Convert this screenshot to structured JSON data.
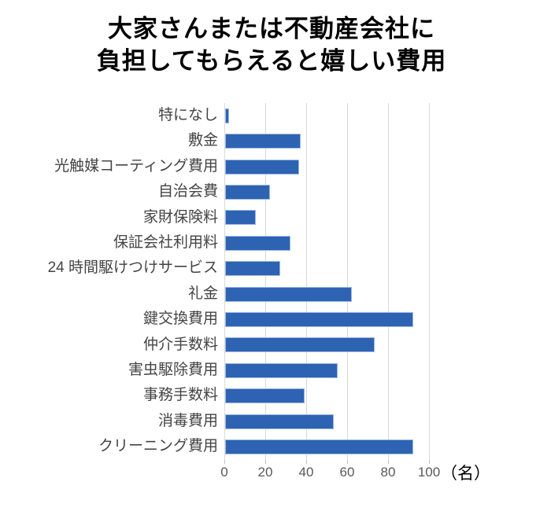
{
  "header": {
    "title_line1": "大家さんまたは不動産会社に",
    "title_line2": "負担してもらえると嬉しい費用"
  },
  "chart_data": {
    "type": "bar",
    "orientation": "horizontal",
    "title": "大家さんまたは不動産会社に負担してもらえると嬉しい費用",
    "categories": [
      "特になし",
      "敷金",
      "光触媒コーティング費用",
      "自治会費",
      "家財保険料",
      "保証会社利用料",
      "24 時間駆けつけサービス",
      "礼金",
      "鍵交換費用",
      "仲介手数料",
      "害虫駆除費用",
      "事務手数料",
      "消毒費用",
      "クリーニング費用"
    ],
    "values": [
      2,
      37,
      36,
      22,
      15,
      32,
      27,
      62,
      92,
      73,
      55,
      39,
      53,
      92
    ],
    "x_ticks": [
      0,
      20,
      40,
      60,
      80,
      100
    ],
    "xlim": [
      0,
      100
    ],
    "xlabel_unit": "（名）",
    "grid": true,
    "legend_position": "none",
    "colors": {
      "bar_fill": "#2d63b2",
      "bar_border": "#9db9e3",
      "gridline": "#d9d9d9",
      "tick_mark": "#bfbfbf",
      "tick_text": "#595959",
      "category_text": "#444444",
      "title_text": "#000000",
      "background": "#ffffff"
    }
  }
}
